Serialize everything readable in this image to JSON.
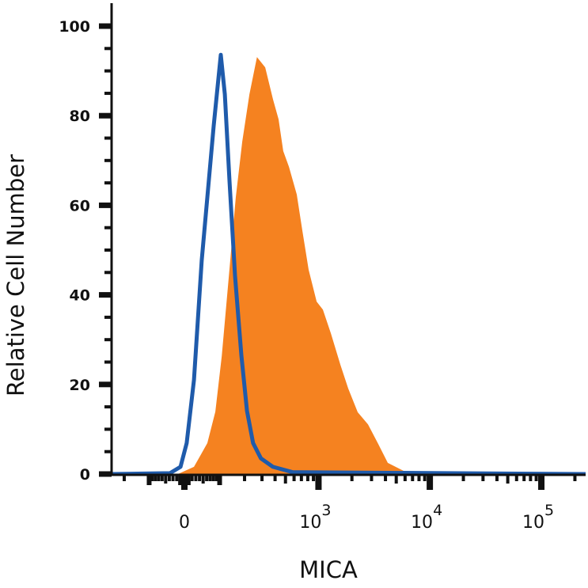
{
  "chart_data": {
    "type": "area",
    "title": "",
    "xlabel": "MICA",
    "ylabel": "Relative Cell Number",
    "x_scale": "biexponential",
    "xlim": [
      -268,
      260000
    ],
    "ylim": [
      0,
      100
    ],
    "yticks": [
      0,
      20,
      40,
      60,
      80,
      100
    ],
    "ytick_labels": [
      "0",
      "20",
      "40",
      "60",
      "80",
      "100"
    ],
    "xticks": [
      {
        "value": 0,
        "base": "0",
        "exp": ""
      },
      {
        "value": 1000,
        "base": "10",
        "exp": "3"
      },
      {
        "value": 10000,
        "base": "10",
        "exp": "4"
      },
      {
        "value": 100000,
        "base": "10",
        "exp": "5"
      }
    ],
    "grid": false,
    "series": [
      {
        "style": "filled",
        "color": "#f58220",
        "x": [
          -17,
          25,
          62,
          86,
          107,
          135,
          160,
          189,
          225,
          268,
          322,
          382,
          431,
          477,
          538,
          635,
          713,
          815,
          963,
          1096,
          1293,
          1574,
          1853,
          2255,
          2790,
          3450,
          4200,
          5820,
          8070
        ],
        "y": [
          0,
          1.6,
          6.9,
          13.9,
          26.3,
          45.8,
          61.7,
          74.2,
          84.8,
          93.1,
          90.8,
          83.7,
          79.2,
          72.1,
          68.6,
          62.4,
          54.4,
          45.6,
          38.5,
          36.7,
          31.4,
          24.4,
          19.1,
          13.8,
          11.1,
          6.7,
          2.5,
          0.7,
          0
        ]
      },
      {
        "style": "outline",
        "color": "#1f5bab",
        "x": [
          -268,
          -38,
          -10,
          6,
          25,
          46,
          62,
          81,
          104,
          118,
          135,
          157,
          185,
          212,
          245,
          293,
          382,
          583,
          260000
        ],
        "y": [
          0,
          0.2,
          1.6,
          6.9,
          21,
          47.7,
          61.8,
          77.7,
          93.6,
          84.8,
          65.4,
          44.2,
          26.5,
          14.1,
          6.9,
          3.5,
          1.6,
          0.4,
          0
        ]
      }
    ]
  }
}
